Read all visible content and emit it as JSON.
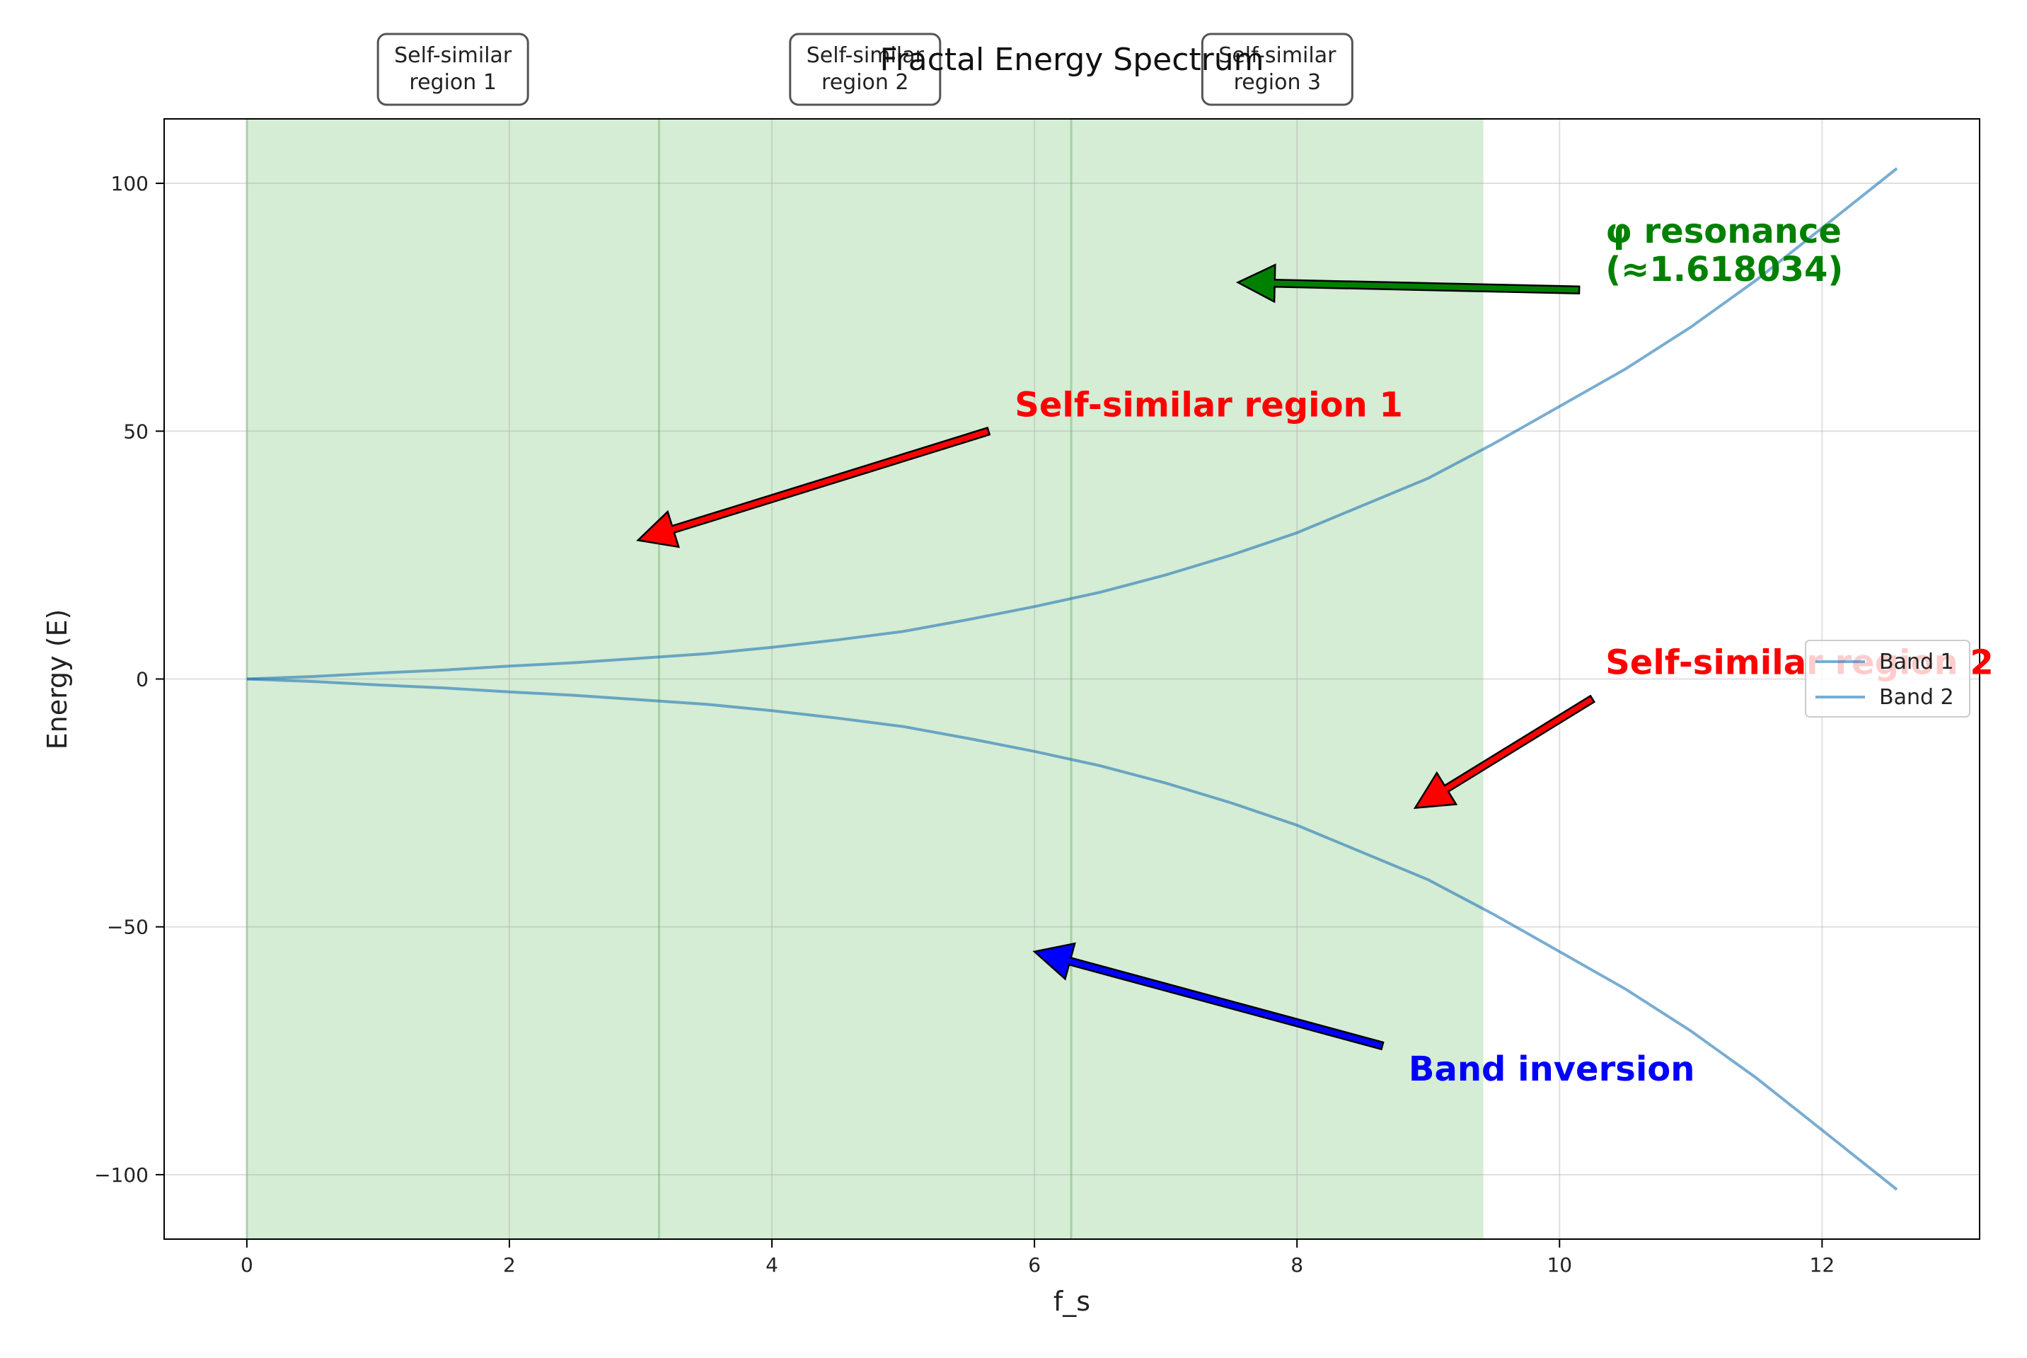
{
  "chart_data": {
    "type": "line",
    "title": "Fractal Energy Spectrum",
    "xlabel": "f_s",
    "ylabel": "Energy (E)",
    "xlim": [
      -0.63,
      13.2
    ],
    "ylim": [
      -113,
      113
    ],
    "xticks": [
      0,
      2,
      4,
      6,
      8,
      10,
      12
    ],
    "yticks": [
      100,
      50,
      0,
      -50,
      -100
    ],
    "ytick_labels": [
      "100",
      "50",
      "0",
      "−50",
      "−100"
    ],
    "grid": true,
    "legend_position": "right",
    "shaded_region": {
      "x_start": 0,
      "x_end": 9.42,
      "color": "#2ca02c"
    },
    "vertical_lines": [
      3.14,
      6.28
    ],
    "series": [
      {
        "name": "Band 1",
        "color": "#1f77b4",
        "x": [
          0,
          0.5,
          1,
          1.5,
          2,
          2.5,
          3,
          3.5,
          4,
          4.5,
          5,
          5.5,
          6,
          6.5,
          7,
          7.5,
          8,
          8.5,
          9,
          9.5,
          10,
          10.5,
          11,
          11.5,
          12,
          12.57
        ],
        "values": [
          0,
          0.5,
          1.2,
          1.8,
          2.6,
          3.3,
          4.2,
          5.1,
          6.4,
          7.9,
          9.6,
          12,
          14.6,
          17.5,
          21,
          25,
          29.5,
          35,
          40.5,
          47.5,
          55,
          62.5,
          71,
          80.5,
          91,
          103
        ]
      },
      {
        "name": "Band 2",
        "color": "#1f77b4",
        "x": [
          0,
          0.5,
          1,
          1.5,
          2,
          2.5,
          3,
          3.5,
          4,
          4.5,
          5,
          5.5,
          6,
          6.5,
          7,
          7.5,
          8,
          8.5,
          9,
          9.5,
          10,
          10.5,
          11,
          11.5,
          12,
          12.57
        ],
        "values": [
          0,
          -0.5,
          -1.2,
          -1.8,
          -2.6,
          -3.3,
          -4.2,
          -5.1,
          -6.4,
          -7.9,
          -9.6,
          -12,
          -14.6,
          -17.5,
          -21,
          -25,
          -29.5,
          -35,
          -40.5,
          -47.5,
          -55,
          -62.5,
          -71,
          -80.5,
          -91,
          -103
        ]
      }
    ],
    "region_boxes": [
      {
        "line1": "Self-similar",
        "line2": "region 1",
        "x": 1.57
      },
      {
        "line1": "Self-similar",
        "line2": "region 2",
        "x": 4.71
      },
      {
        "line1": "Self-similar",
        "line2": "region 3",
        "x": 7.85
      }
    ],
    "annotations": [
      {
        "line1": "φ resonance",
        "line2": "(≈1.618034)",
        "color": "#008000",
        "text_x": 10.35,
        "text_y": 88,
        "tail_x": 10.15,
        "tail_y": 78.5,
        "head_x": 7.55,
        "head_y": 80
      },
      {
        "line1": "Self-similar region 1",
        "line2": "",
        "color": "#ff0000",
        "text_x": 5.85,
        "text_y": 53,
        "tail_x": 5.65,
        "tail_y": 50,
        "head_x": 2.98,
        "head_y": 28
      },
      {
        "line1": "Self-similar region 2",
        "line2": "",
        "color": "#ff0000",
        "text_x": 10.35,
        "text_y": 1,
        "tail_x": 10.25,
        "tail_y": -4,
        "head_x": 8.9,
        "head_y": -26
      },
      {
        "line1": "Band inversion",
        "line2": "",
        "color": "#0000ff",
        "text_x": 8.85,
        "text_y": -81,
        "tail_x": 8.65,
        "tail_y": -74,
        "head_x": 6.0,
        "head_y": -55
      }
    ]
  }
}
